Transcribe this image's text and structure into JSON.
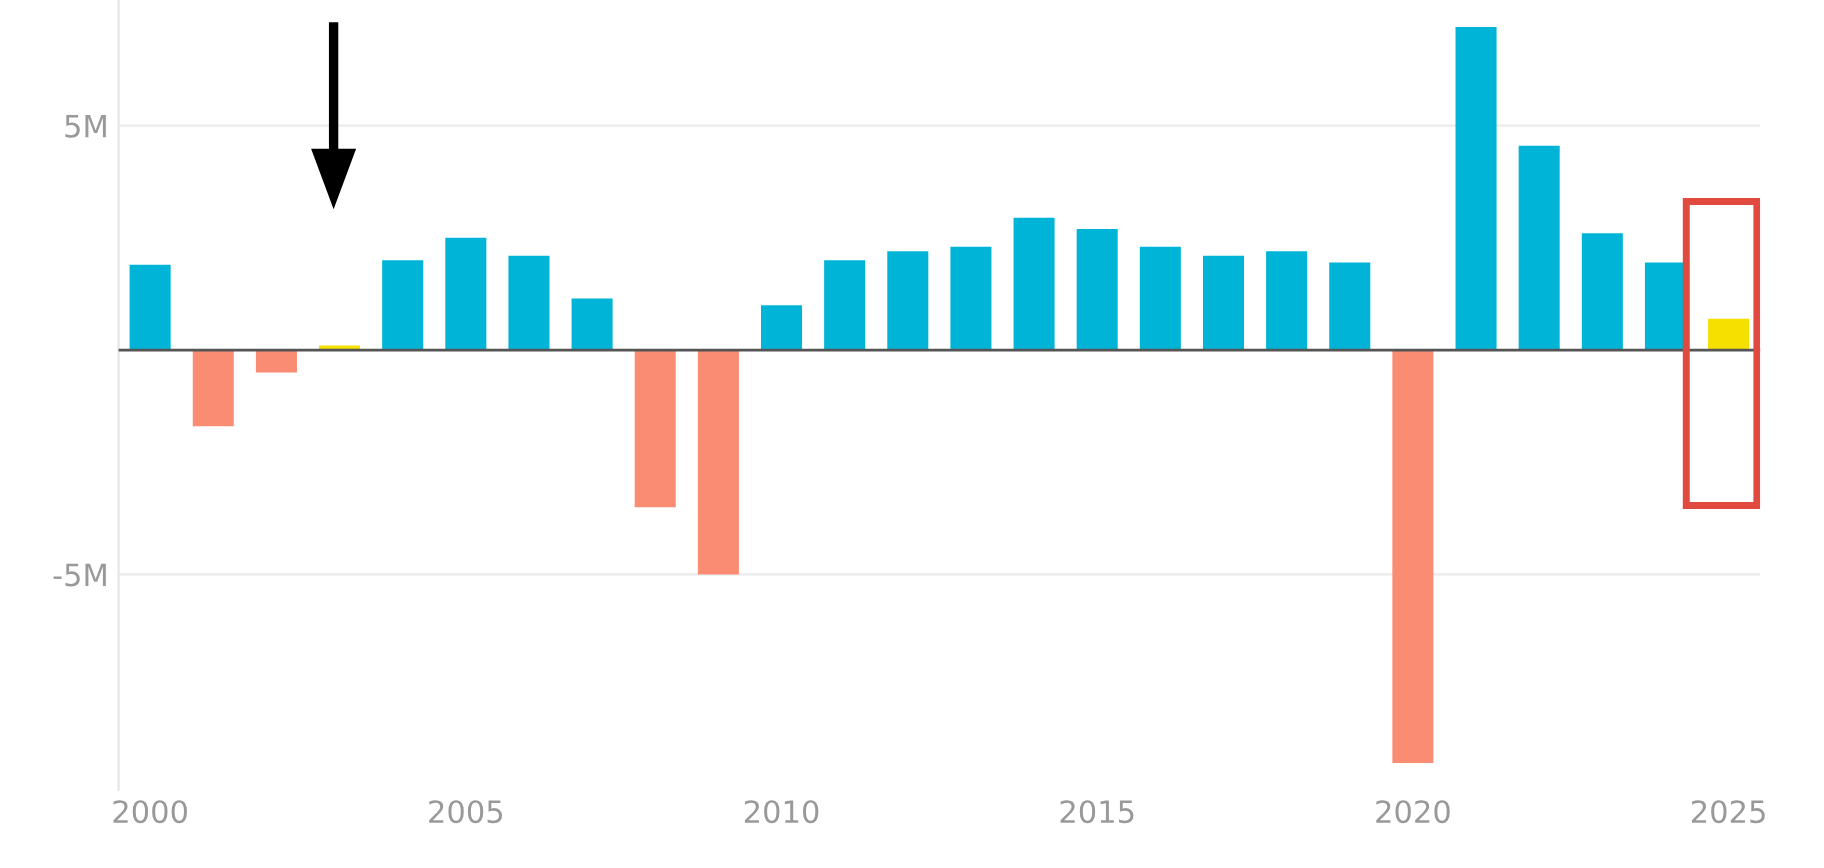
{
  "chart_data": {
    "type": "bar",
    "x": [
      2000,
      2001,
      2002,
      2003,
      2004,
      2005,
      2006,
      2007,
      2008,
      2009,
      2010,
      2011,
      2012,
      2013,
      2014,
      2015,
      2016,
      2017,
      2018,
      2019,
      2020,
      2021,
      2022,
      2023,
      2024,
      2025
    ],
    "values": [
      1.9,
      -1.7,
      -0.5,
      0.1,
      2.0,
      2.5,
      2.1,
      1.15,
      -3.5,
      -5.0,
      1.0,
      2.0,
      2.2,
      2.3,
      2.95,
      2.7,
      2.3,
      2.1,
      2.2,
      1.95,
      -9.2,
      7.2,
      4.55,
      2.6,
      1.95,
      0.7
    ],
    "colors": [
      "#00b4d8",
      "#fa8c74",
      "#fa8c74",
      "#f5e000",
      "#00b4d8",
      "#00b4d8",
      "#00b4d8",
      "#00b4d8",
      "#fa8c74",
      "#fa8c74",
      "#00b4d8",
      "#00b4d8",
      "#00b4d8",
      "#00b4d8",
      "#00b4d8",
      "#00b4d8",
      "#00b4d8",
      "#00b4d8",
      "#00b4d8",
      "#00b4d8",
      "#fa8c74",
      "#00b4d8",
      "#00b4d8",
      "#00b4d8",
      "#00b4d8",
      "#f5e000"
    ],
    "xlim": [
      1999.5,
      2025.5
    ],
    "xticks": [
      2000,
      2005,
      2010,
      2015,
      2020,
      2025
    ],
    "ylim": [
      -9.8,
      7.8
    ],
    "yticks": [
      {
        "value": -5,
        "label": "-5M"
      },
      {
        "value": 5,
        "label": "5M"
      }
    ],
    "ref_lines": [
      {
        "axis": "y",
        "value": 0,
        "color": "#555555"
      }
    ],
    "grid": "y"
  }
}
